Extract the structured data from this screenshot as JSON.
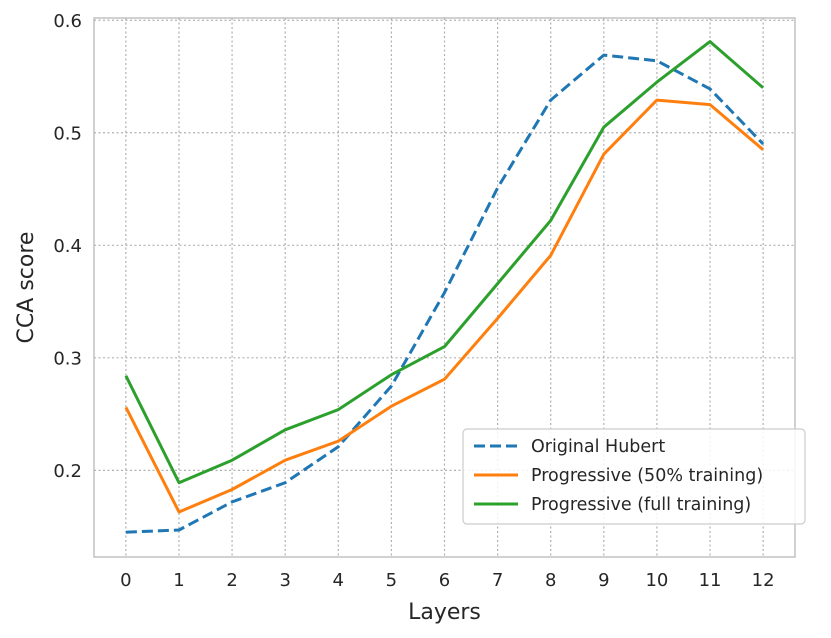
{
  "chart_data": {
    "type": "line",
    "title": "",
    "xlabel": "Layers",
    "ylabel": "CCA score",
    "x": [
      0,
      1,
      2,
      3,
      4,
      5,
      6,
      7,
      8,
      9,
      10,
      11,
      12
    ],
    "xticks": [
      "0",
      "1",
      "2",
      "3",
      "4",
      "5",
      "6",
      "7",
      "8",
      "9",
      "10",
      "11",
      "12"
    ],
    "yticks": [
      "0.2",
      "0.3",
      "0.4",
      "0.5",
      "0.6"
    ],
    "xlim": [
      -0.6,
      12.6
    ],
    "ylim": [
      0.123,
      0.602
    ],
    "grid": true,
    "legend_position": "lower right",
    "series": [
      {
        "name": "Original Hubert",
        "color": "#1f77b4",
        "style": "dashed",
        "values": [
          0.145,
          0.147,
          0.172,
          0.189,
          0.221,
          0.275,
          0.358,
          0.451,
          0.529,
          0.569,
          0.564,
          0.539,
          0.49
        ]
      },
      {
        "name": "Progressive (50% training)",
        "color": "#ff7f0e",
        "style": "solid",
        "values": [
          0.256,
          0.163,
          0.183,
          0.209,
          0.226,
          0.257,
          0.281,
          0.335,
          0.391,
          0.481,
          0.529,
          0.525,
          0.485
        ]
      },
      {
        "name": "Progressive (full training)",
        "color": "#2ca02c",
        "style": "solid",
        "values": [
          0.284,
          0.189,
          0.209,
          0.236,
          0.254,
          0.285,
          0.31,
          0.366,
          0.422,
          0.505,
          0.545,
          0.581,
          0.54
        ]
      }
    ]
  }
}
